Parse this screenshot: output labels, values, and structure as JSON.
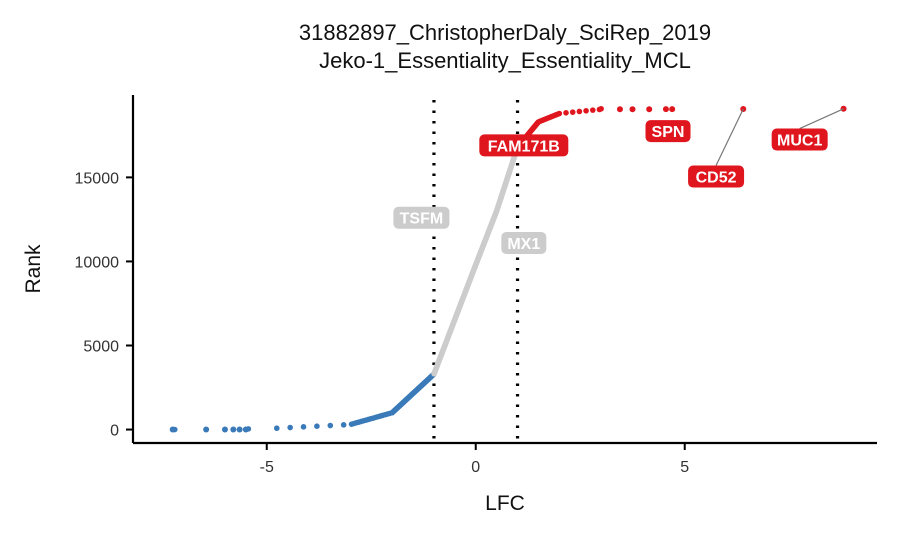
{
  "title_line1": "31882897_ChristopherDaly_SciRep_2019",
  "title_line2": "Jeko-1_Essentiality_Essentiality_MCL",
  "colors": {
    "depleted": "#3a7ab8",
    "neutral": "#cccccc",
    "enriched": "#e0161f",
    "axis": "#000000",
    "label_text": "#ffffff"
  },
  "chart_data": {
    "type": "scatter",
    "xlabel": "LFC",
    "ylabel": "Rank",
    "xlim": [
      -8.2,
      9.6
    ],
    "ylim": [
      -800,
      19900
    ],
    "x_ticks": [
      -5,
      0,
      5
    ],
    "x_tick_labels": [
      "-5",
      "0",
      "5"
    ],
    "y_ticks": [
      0,
      5000,
      10000,
      15000
    ],
    "y_tick_labels": [
      "0",
      "5000",
      "10000",
      "15000"
    ],
    "grid": false,
    "legend": "none",
    "thresholds": [
      -1,
      1
    ],
    "total_genes": 19114,
    "curve": {
      "description_points": [
        {
          "x": -7.2,
          "y": 0
        },
        {
          "x": -5.0,
          "y": 50
        },
        {
          "x": -3.0,
          "y": 300
        },
        {
          "x": -2.0,
          "y": 1000
        },
        {
          "x": -1.0,
          "y": 3300
        },
        {
          "x": 0.0,
          "y": 9800
        },
        {
          "x": 0.5,
          "y": 13000
        },
        {
          "x": 1.0,
          "y": 16800
        },
        {
          "x": 1.5,
          "y": 18300
        },
        {
          "x": 2.0,
          "y": 18800
        },
        {
          "x": 3.0,
          "y": 19050
        }
      ]
    },
    "outlier_points": [
      {
        "x": -7.25,
        "y": 0,
        "group": "depleted"
      },
      {
        "x": -6.45,
        "y": 0,
        "group": "depleted"
      },
      {
        "x": -6.0,
        "y": 0,
        "group": "depleted"
      },
      {
        "x": -5.8,
        "y": 0,
        "group": "depleted"
      },
      {
        "x": -5.65,
        "y": 0,
        "group": "depleted"
      },
      {
        "x": -5.5,
        "y": 0,
        "group": "depleted"
      },
      {
        "x": 3.45,
        "y": 19050,
        "group": "enriched"
      },
      {
        "x": 3.75,
        "y": 19050,
        "group": "enriched"
      },
      {
        "x": 4.15,
        "y": 19050,
        "group": "enriched"
      },
      {
        "x": 4.55,
        "y": 19060,
        "group": "enriched"
      },
      {
        "x": 4.7,
        "y": 19060,
        "group": "enriched"
      },
      {
        "x": 6.4,
        "y": 19070,
        "group": "enriched"
      },
      {
        "x": 8.8,
        "y": 19080,
        "group": "enriched"
      }
    ],
    "labels": [
      {
        "gene": "FAM171B",
        "x": 1.0,
        "y": 16800,
        "group": "enriched",
        "label_x": 1.15,
        "label_y": 16900
      },
      {
        "gene": "SPN",
        "x": 4.55,
        "y": 19060,
        "group": "enriched",
        "label_x": 4.6,
        "label_y": 17750
      },
      {
        "gene": "CD52",
        "x": 6.4,
        "y": 19070,
        "group": "enriched",
        "label_x": 5.75,
        "label_y": 15050
      },
      {
        "gene": "MUC1",
        "x": 8.8,
        "y": 19080,
        "group": "enriched",
        "label_x": 7.75,
        "label_y": 17250
      },
      {
        "gene": "TSFM",
        "x": -1.0,
        "y": 12600,
        "group": "neutral",
        "label_x": -1.3,
        "label_y": 12600
      },
      {
        "gene": "MX1",
        "x": 1.0,
        "y": 11100,
        "group": "neutral",
        "label_x": 1.15,
        "label_y": 11100
      }
    ]
  }
}
